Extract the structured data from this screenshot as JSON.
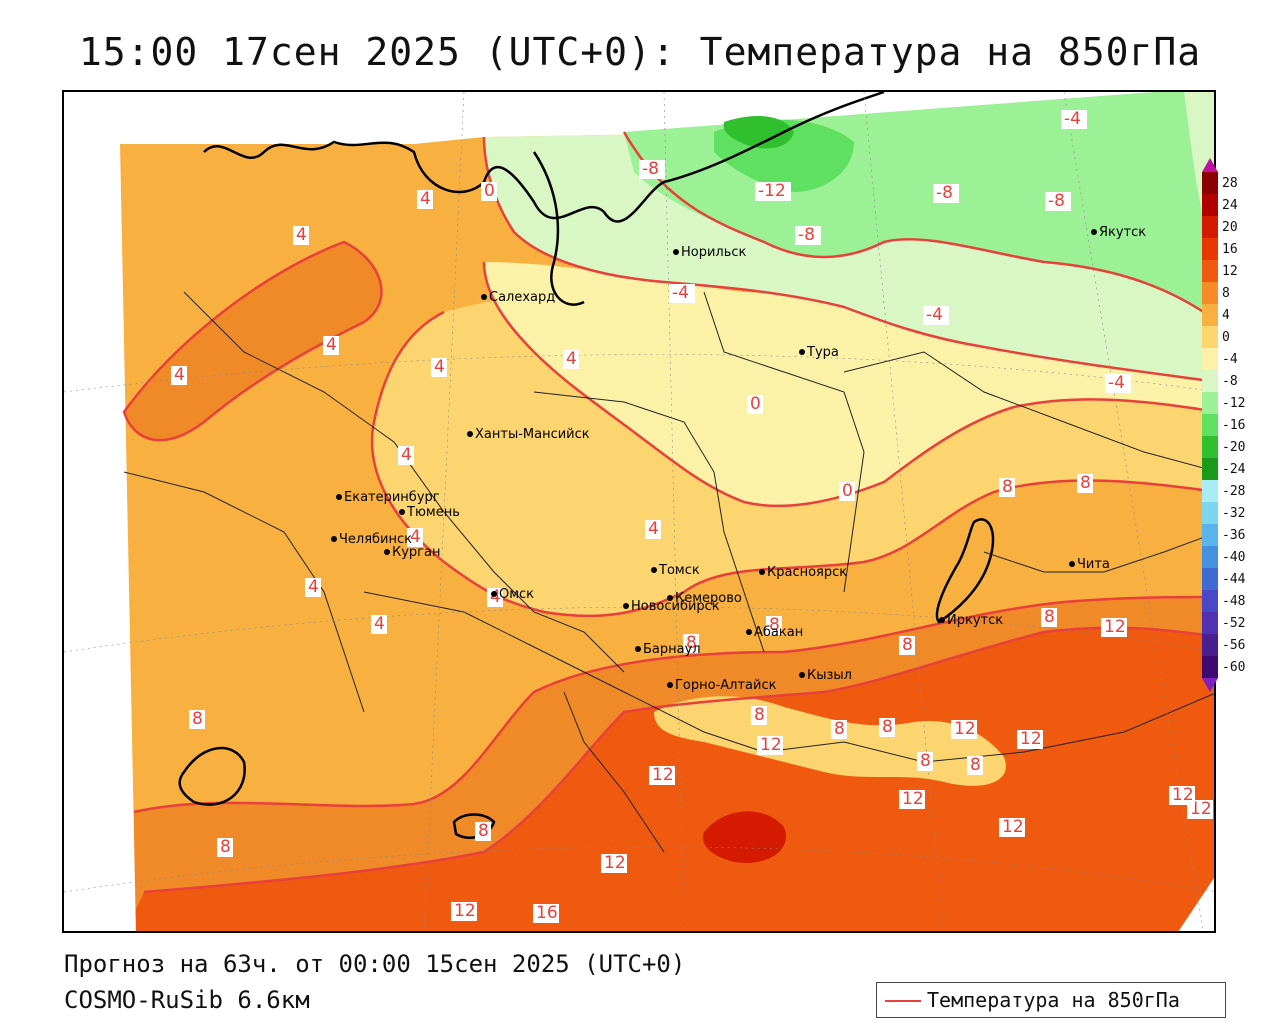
{
  "header": {
    "title": "15:00 17сен 2025 (UTC+0): Температура на 850гПа"
  },
  "footer": {
    "forecast": "Прогноз на 63ч. от 00:00 15сен 2025 (UTC+0)",
    "model": "COSMO-RuSib 6.6км"
  },
  "legend": {
    "label": "Температура на 850гПа",
    "line_color": "#e8403a"
  },
  "colorbar": {
    "labels": [
      "28",
      "24",
      "20",
      "16",
      "12",
      "8",
      "4",
      "0",
      "-4",
      "-8",
      "-12",
      "-16",
      "-20",
      "-24",
      "-28",
      "-32",
      "-36",
      "-40",
      "-44",
      "-48",
      "-52",
      "-56",
      "-60"
    ],
    "colors": [
      "#8b0000",
      "#b00000",
      "#d41a00",
      "#e83800",
      "#f05a10",
      "#f88a28",
      "#f8b040",
      "#fcd470",
      "#fbf2a8",
      "#d8f7c4",
      "#9cf095",
      "#60e060",
      "#2fbf2f",
      "#1a9a1a",
      "#a8ecf5",
      "#7cd6f0",
      "#58b4ea",
      "#4690e0",
      "#406ad4",
      "#4848c8",
      "#5032b0",
      "#4a2090",
      "#3e0c70"
    ],
    "top_arrow_color": "#c010a0",
    "bottom_arrow_color": "#8020c0"
  },
  "cities": [
    {
      "name": "Норильск"
    },
    {
      "name": "Якутск"
    },
    {
      "name": "Салехард"
    },
    {
      "name": "Тура"
    },
    {
      "name": "Ханты-Мансийск"
    },
    {
      "name": "Екатеринбург"
    },
    {
      "name": "Тюмень"
    },
    {
      "name": "Челябинск"
    },
    {
      "name": "Курган"
    },
    {
      "name": "Омск"
    },
    {
      "name": "Томск"
    },
    {
      "name": "Красноярск"
    },
    {
      "name": "Новосибирск"
    },
    {
      "name": "Кемерово"
    },
    {
      "name": "Абакан"
    },
    {
      "name": "Барнаул"
    },
    {
      "name": "Горно-Алтайск"
    },
    {
      "name": "Кызыл"
    },
    {
      "name": "Иркутск"
    },
    {
      "name": "Чита"
    }
  ],
  "isotherm_labels": [
    "-4",
    "-8",
    "-12",
    "-8",
    "-8",
    "-8",
    "-4",
    "-4",
    "-4",
    "0",
    "0",
    "0",
    "4",
    "4",
    "4",
    "4",
    "4",
    "4",
    "4",
    "4",
    "4",
    "4",
    "4",
    "4",
    "8",
    "8",
    "8",
    "8",
    "8",
    "8",
    "8",
    "8",
    "8",
    "8",
    "8",
    "8",
    "8",
    "8",
    "12",
    "12",
    "12",
    "12",
    "12",
    "12",
    "12",
    "12",
    "12",
    "12",
    "12",
    "16"
  ]
}
